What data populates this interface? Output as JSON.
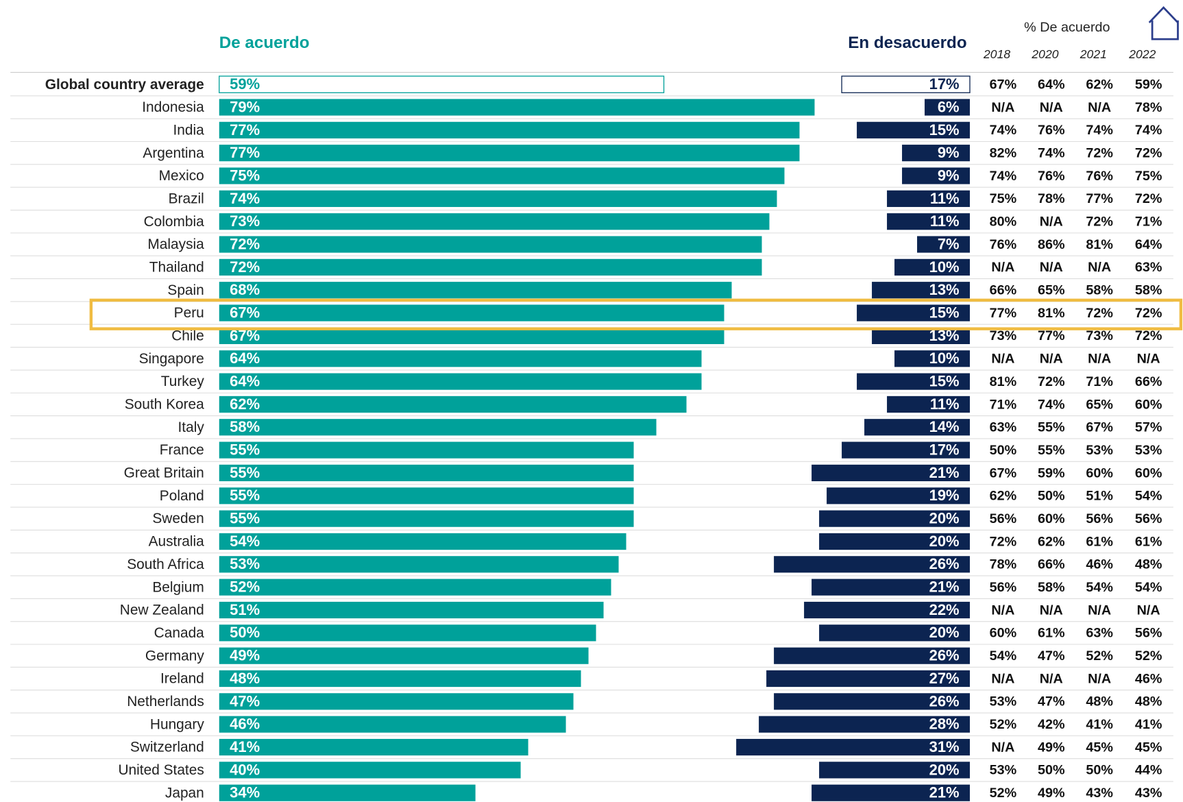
{
  "chart_data": {
    "type": "bar",
    "categories": [
      "Global country average",
      "Indonesia",
      "India",
      "Argentina",
      "Mexico",
      "Brazil",
      "Colombia",
      "Malaysia",
      "Thailand",
      "Spain",
      "Peru",
      "Chile",
      "Singapore",
      "Turkey",
      "South Korea",
      "Italy",
      "France",
      "Great Britain",
      "Poland",
      "Sweden",
      "Australia",
      "South Africa",
      "Belgium",
      "New Zealand",
      "Canada",
      "Germany",
      "Ireland",
      "Netherlands",
      "Hungary",
      "Switzerland",
      "United States",
      "Japan"
    ],
    "series": [
      {
        "name": "De acuerdo",
        "color": "#00a19a",
        "values": [
          59,
          79,
          77,
          77,
          75,
          74,
          73,
          72,
          72,
          68,
          67,
          67,
          64,
          64,
          62,
          58,
          55,
          55,
          55,
          55,
          54,
          53,
          52,
          51,
          50,
          49,
          48,
          47,
          46,
          41,
          40,
          34
        ],
        "value_labels": [
          "59%",
          "79%",
          "77%",
          "77%",
          "75%",
          "74%",
          "73%",
          "72%",
          "72%",
          "68%",
          "67%",
          "67%",
          "64%",
          "64%",
          "62%",
          "58%",
          "55%",
          "55%",
          "55%",
          "55%",
          "54%",
          "53%",
          "52%",
          "51%",
          "50%",
          "49%",
          "48%",
          "47%",
          "46%",
          "41%",
          "40%",
          "34%"
        ]
      },
      {
        "name": "En desacuerdo",
        "color": "#0c2451",
        "values": [
          17,
          6,
          15,
          9,
          9,
          11,
          11,
          7,
          10,
          13,
          15,
          13,
          10,
          15,
          11,
          14,
          17,
          21,
          19,
          20,
          20,
          26,
          21,
          22,
          20,
          26,
          27,
          26,
          28,
          31,
          20,
          21
        ],
        "value_labels": [
          "17%",
          "6%",
          "15%",
          "9%",
          "9%",
          "11%",
          "11%",
          "7%",
          "10%",
          "13%",
          "15%",
          "13%",
          "10%",
          "15%",
          "11%",
          "14%",
          "17%",
          "21%",
          "19%",
          "20%",
          "20%",
          "26%",
          "21%",
          "22%",
          "20%",
          "26%",
          "27%",
          "26%",
          "28%",
          "31%",
          "20%",
          "21%"
        ]
      }
    ],
    "highlight": "Peru",
    "table": {
      "title": "% De acuerdo",
      "columns": [
        "2018",
        "2020",
        "2021",
        "2022"
      ],
      "rows": [
        [
          "67%",
          "64%",
          "62%",
          "59%"
        ],
        [
          "N/A",
          "N/A",
          "N/A",
          "78%"
        ],
        [
          "74%",
          "76%",
          "74%",
          "74%"
        ],
        [
          "82%",
          "74%",
          "72%",
          "72%"
        ],
        [
          "74%",
          "76%",
          "76%",
          "75%"
        ],
        [
          "75%",
          "78%",
          "77%",
          "72%"
        ],
        [
          "80%",
          "N/A",
          "72%",
          "71%"
        ],
        [
          "76%",
          "86%",
          "81%",
          "64%"
        ],
        [
          "N/A",
          "N/A",
          "N/A",
          "63%"
        ],
        [
          "66%",
          "65%",
          "58%",
          "58%"
        ],
        [
          "77%",
          "81%",
          "72%",
          "72%"
        ],
        [
          "73%",
          "77%",
          "73%",
          "72%"
        ],
        [
          "N/A",
          "N/A",
          "N/A",
          "N/A"
        ],
        [
          "81%",
          "72%",
          "71%",
          "66%"
        ],
        [
          "71%",
          "74%",
          "65%",
          "60%"
        ],
        [
          "63%",
          "55%",
          "67%",
          "57%"
        ],
        [
          "50%",
          "55%",
          "53%",
          "53%"
        ],
        [
          "67%",
          "59%",
          "60%",
          "60%"
        ],
        [
          "62%",
          "50%",
          "51%",
          "54%"
        ],
        [
          "56%",
          "60%",
          "56%",
          "56%"
        ],
        [
          "72%",
          "62%",
          "61%",
          "61%"
        ],
        [
          "78%",
          "66%",
          "46%",
          "48%"
        ],
        [
          "56%",
          "58%",
          "54%",
          "54%"
        ],
        [
          "N/A",
          "N/A",
          "N/A",
          "N/A"
        ],
        [
          "60%",
          "61%",
          "63%",
          "56%"
        ],
        [
          "54%",
          "47%",
          "52%",
          "52%"
        ],
        [
          "N/A",
          "N/A",
          "N/A",
          "46%"
        ],
        [
          "53%",
          "47%",
          "48%",
          "48%"
        ],
        [
          "52%",
          "42%",
          "41%",
          "41%"
        ],
        [
          "N/A",
          "49%",
          "45%",
          "45%"
        ],
        [
          "53%",
          "50%",
          "50%",
          "44%"
        ],
        [
          "52%",
          "49%",
          "43%",
          "43%"
        ]
      ]
    }
  }
}
